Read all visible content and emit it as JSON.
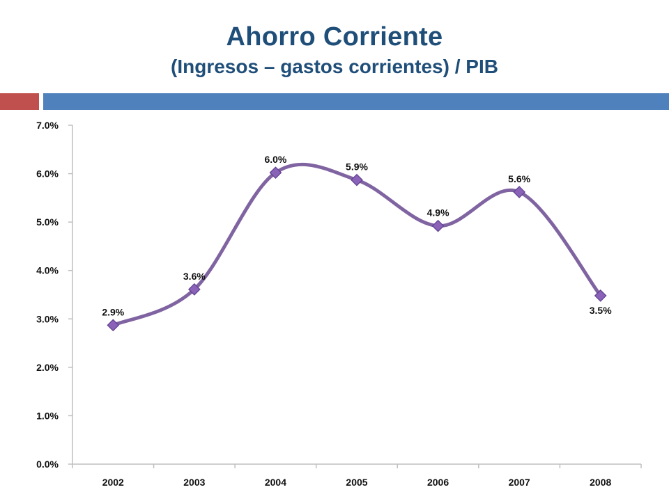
{
  "slide": {
    "title": "Ahorro Corriente",
    "subtitle": "(Ingresos – gastos corrientes) / PIB"
  },
  "colors": {
    "title": "#1f4e79",
    "accent_red": "#c0504d",
    "accent_blue": "#4f81bd",
    "line": "#8064a2",
    "marker_fill": "#8a63b8",
    "marker_stroke": "#5f3f8f",
    "axis": "#bfbfbf"
  },
  "chart_data": {
    "type": "line",
    "smooth": true,
    "marker": "diamond",
    "categories": [
      "2002",
      "2003",
      "2004",
      "2005",
      "2006",
      "2007",
      "2008"
    ],
    "values": [
      2.87,
      3.61,
      6.02,
      5.87,
      4.92,
      5.62,
      3.48
    ],
    "data_labels": [
      "2.9%",
      "3.6%",
      "6.0%",
      "5.9%",
      "4.9%",
      "5.6%",
      "3.5%"
    ],
    "y_ticks": [
      0,
      1,
      2,
      3,
      4,
      5,
      6,
      7
    ],
    "y_tick_labels": [
      "0.0%",
      "1.0%",
      "2.0%",
      "3.0%",
      "4.0%",
      "5.0%",
      "6.0%",
      "7.0%"
    ],
    "ylim": [
      0,
      7
    ],
    "grid": false,
    "legend": "none"
  }
}
